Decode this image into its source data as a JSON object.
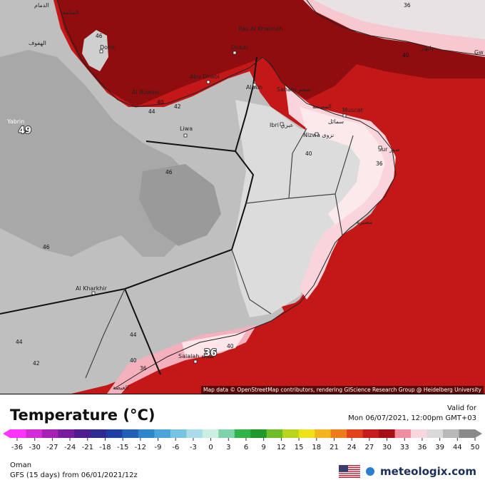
{
  "map": {
    "places": [
      {
        "id": "manama",
        "label": "المنامة"
      },
      {
        "id": "dammam",
        "label": "الدمام"
      },
      {
        "id": "hofuf",
        "label": "الهفوف"
      },
      {
        "id": "doha",
        "label": "Doha"
      },
      {
        "id": "ras-al-khaimah",
        "label": "Ras Al Khaimah"
      },
      {
        "id": "dubai",
        "label": "Dubai"
      },
      {
        "id": "abu-dhabi",
        "label": "Abu Dhabi"
      },
      {
        "id": "al-ruwais",
        "label": "Al Ruwais"
      },
      {
        "id": "al-ain",
        "label": "Al Ain"
      },
      {
        "id": "saham",
        "label": "Saham صحم"
      },
      {
        "id": "muscat",
        "label": "Muscat"
      },
      {
        "id": "masnaah",
        "label": "المصنعة"
      },
      {
        "id": "seeb",
        "label": "سمائل"
      },
      {
        "id": "ibri",
        "label": "Ibri عبري"
      },
      {
        "id": "nizwa",
        "label": "Nizwa نزوى"
      },
      {
        "id": "sur",
        "label": "Sur صور"
      },
      {
        "id": "liwa",
        "label": "Liwa"
      },
      {
        "id": "yabrin",
        "label": "Yabrin"
      },
      {
        "id": "al-kharkhir",
        "label": "Al Kharkhir"
      },
      {
        "id": "salalah",
        "label": "Salalah صلالة"
      },
      {
        "id": "masirah",
        "label": "مصيرة"
      },
      {
        "id": "ghayda",
        "label": "الغيضة"
      },
      {
        "id": "chabahar",
        "label": "چابهار"
      },
      {
        "id": "gw",
        "label": "Gw"
      }
    ],
    "isotherms": [
      {
        "id": "iso-49",
        "value": "49"
      },
      {
        "id": "iso-46-a",
        "value": "46"
      },
      {
        "id": "iso-46-b",
        "value": "46"
      },
      {
        "id": "iso-46-c",
        "value": "46"
      },
      {
        "id": "iso-44-a",
        "value": "44"
      },
      {
        "id": "iso-44-b",
        "value": "44"
      },
      {
        "id": "iso-44-c",
        "value": "44"
      },
      {
        "id": "iso-42-a",
        "value": "42"
      },
      {
        "id": "iso-42-b",
        "value": "42"
      },
      {
        "id": "iso-40-a",
        "value": "40"
      },
      {
        "id": "iso-40-b",
        "value": "40"
      },
      {
        "id": "iso-40-c",
        "value": "40"
      },
      {
        "id": "iso-40-d",
        "value": "40"
      },
      {
        "id": "iso-36-a",
        "value": "36"
      },
      {
        "id": "iso-36-b",
        "value": "36"
      },
      {
        "id": "iso-36-c",
        "value": "36"
      },
      {
        "id": "iso-36-d",
        "value": "36"
      },
      {
        "id": "iso-40-e",
        "value": "40"
      }
    ],
    "attribution": "Map data © OpenStreetMap contributors, rendering GIScience Research Group @ Heidelberg University"
  },
  "legend": {
    "title": "Temperature (°C)",
    "valid_for": "Valid for",
    "valid_time": "Mon 06/07/2021, 12:00pm GMT+03",
    "region": "Oman",
    "model": "GFS (15 days) from 06/01/2021/12z",
    "brand": "meteologix.com",
    "scale_labels": [
      "-36",
      "-30",
      "-27",
      "-24",
      "-21",
      "-18",
      "-15",
      "-12",
      "-9",
      "-6",
      "-3",
      "0",
      "3",
      "6",
      "9",
      "12",
      "15",
      "18",
      "21",
      "24",
      "27",
      "30",
      "33",
      "36",
      "39",
      "44",
      "50"
    ],
    "scale_colors": [
      "#ff33ff",
      "#d22bd8",
      "#a51fb6",
      "#7a1a9f",
      "#4f1a8e",
      "#2e2a93",
      "#1e3fa3",
      "#2260b8",
      "#2d86cc",
      "#4aa6d9",
      "#78c2e2",
      "#a8dcea",
      "#cdeee2",
      "#7fd3a8",
      "#31b34a",
      "#1f9a2a",
      "#6cbe27",
      "#b8d41f",
      "#f1e218",
      "#f3b51b",
      "#ee7b1c",
      "#e3421d",
      "#c81c1c",
      "#a50f15",
      "#f08da0",
      "#f7d7dd",
      "#d9d9d9",
      "#b8b8b8",
      "#8a8a8a"
    ]
  }
}
